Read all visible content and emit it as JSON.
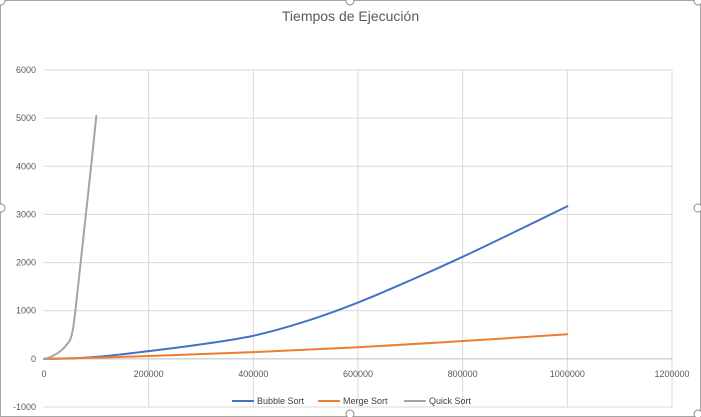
{
  "chart_data": {
    "type": "line",
    "title": "Tiempos de Ejecución",
    "xlabel": "",
    "ylabel": "",
    "xlim": [
      0,
      1200000
    ],
    "ylim": [
      -1000,
      6000
    ],
    "x_ticks": [
      0,
      200000,
      400000,
      600000,
      800000,
      1000000,
      1200000
    ],
    "y_ticks": [
      -1000,
      0,
      1000,
      2000,
      3000,
      4000,
      5000,
      6000
    ],
    "grid": true,
    "legend_position": "bottom",
    "series": [
      {
        "name": "Bubble Sort",
        "color": "#4472c4",
        "x": [
          0,
          50000,
          100000,
          200000,
          300000,
          400000,
          500000,
          600000,
          700000,
          800000,
          900000,
          1000000
        ],
        "y": [
          0,
          10,
          40,
          160,
          300,
          480,
          780,
          1170,
          1630,
          2120,
          2640,
          3170
        ]
      },
      {
        "name": "Merge Sort",
        "color": "#ed7d31",
        "x": [
          0,
          100000,
          200000,
          400000,
          600000,
          800000,
          1000000
        ],
        "y": [
          0,
          25,
          60,
          140,
          240,
          370,
          510
        ]
      },
      {
        "name": "Quick Sort",
        "color": "#a5a5a5",
        "x": [
          0,
          10000,
          20000,
          30000,
          40000,
          50000,
          55000,
          60000,
          70000,
          80000,
          90000,
          100000
        ],
        "y": [
          0,
          30,
          80,
          150,
          250,
          400,
          600,
          1000,
          2000,
          3000,
          4000,
          5050
        ]
      }
    ]
  }
}
